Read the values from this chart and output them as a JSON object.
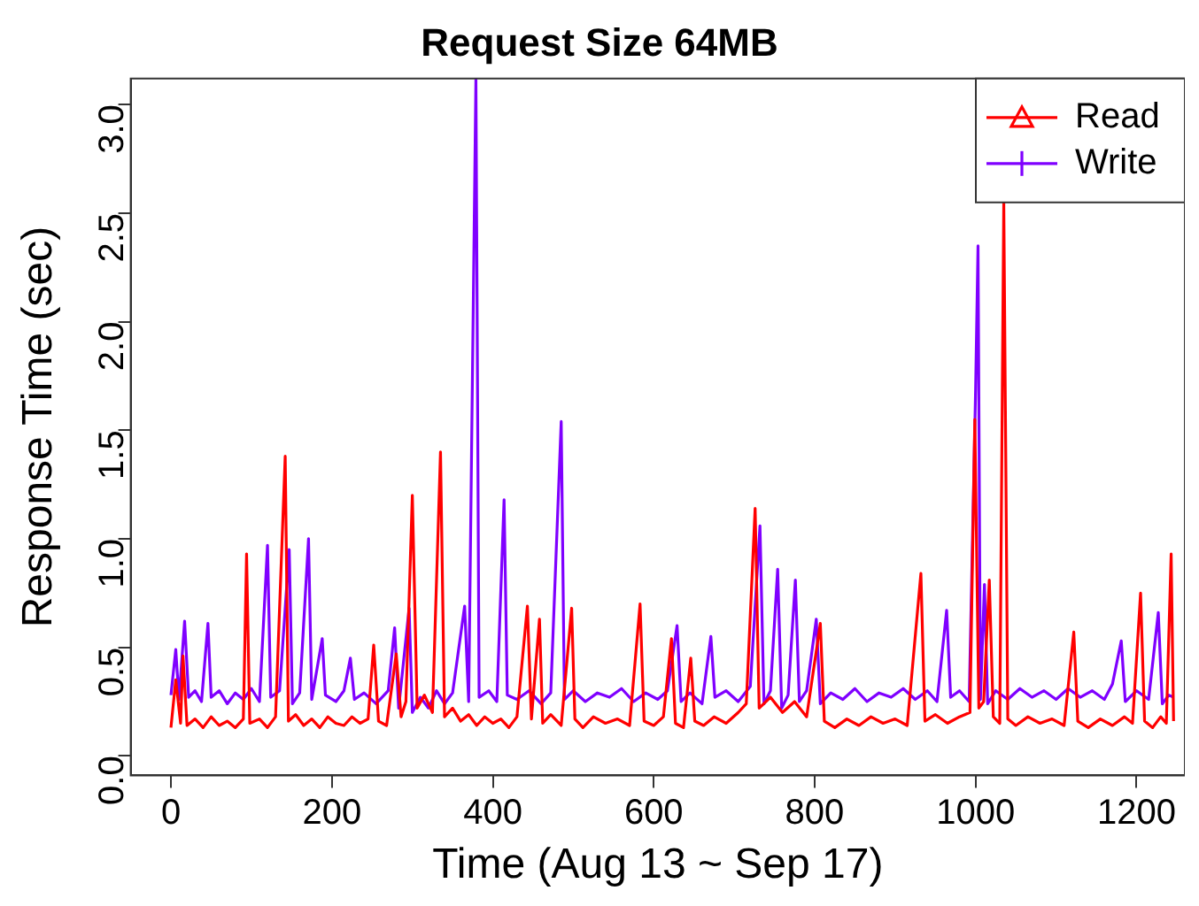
{
  "chart_data": {
    "type": "line",
    "title": "Request Size 64MB",
    "xlabel": "Time (Aug 13 ~ Sep 17)",
    "ylabel": "Response Time (sec)",
    "xlim": [
      -50,
      1260
    ],
    "xticks": [
      0,
      200,
      400,
      600,
      800,
      1000,
      1200
    ],
    "ylim": [
      -0.09,
      3.12
    ],
    "yticks": [
      {
        "value": 0,
        "label": "0.0"
      },
      0.5,
      {
        "value": 1,
        "label": "1.0"
      },
      1.5,
      {
        "value": 2,
        "label": "2.0"
      },
      2.5,
      {
        "value": 3,
        "label": "3.0"
      }
    ],
    "grid": false,
    "legend": "top right",
    "series": [
      {
        "name": "Read",
        "color": "#ff0000",
        "x": [
          0,
          6,
          12,
          15,
          20,
          30,
          40,
          50,
          60,
          70,
          80,
          90,
          94,
          98,
          110,
          120,
          130,
          142,
          146,
          155,
          165,
          175,
          185,
          195,
          205,
          215,
          225,
          235,
          245,
          252,
          258,
          268,
          280,
          286,
          292,
          300,
          306,
          315,
          325,
          335,
          340,
          350,
          360,
          370,
          380,
          390,
          400,
          410,
          420,
          430,
          443,
          448,
          458,
          462,
          472,
          485,
          498,
          502,
          512,
          525,
          540,
          555,
          570,
          583,
          588,
          600,
          612,
          622,
          627,
          637,
          646,
          651,
          662,
          675,
          690,
          705,
          715,
          726,
          731,
          745,
          760,
          775,
          790,
          807,
          812,
          825,
          840,
          855,
          870,
          885,
          900,
          915,
          932,
          937,
          950,
          965,
          980,
          993,
          999,
          1004,
          1010,
          1017,
          1022,
          1030,
          1035,
          1040,
          1050,
          1065,
          1080,
          1095,
          1110,
          1122,
          1127,
          1140,
          1155,
          1170,
          1185,
          1195,
          1205,
          1210,
          1220,
          1230,
          1237,
          1243,
          1246
        ],
        "values": [
          0.13,
          0.35,
          0.15,
          0.46,
          0.14,
          0.17,
          0.13,
          0.18,
          0.14,
          0.16,
          0.13,
          0.17,
          0.93,
          0.15,
          0.17,
          0.13,
          0.18,
          1.38,
          0.16,
          0.19,
          0.14,
          0.17,
          0.13,
          0.18,
          0.15,
          0.14,
          0.18,
          0.15,
          0.17,
          0.51,
          0.16,
          0.14,
          0.47,
          0.18,
          0.25,
          1.2,
          0.22,
          0.28,
          0.2,
          1.4,
          0.18,
          0.22,
          0.16,
          0.19,
          0.14,
          0.18,
          0.15,
          0.17,
          0.13,
          0.18,
          0.69,
          0.17,
          0.63,
          0.15,
          0.19,
          0.14,
          0.68,
          0.17,
          0.13,
          0.18,
          0.15,
          0.17,
          0.14,
          0.7,
          0.16,
          0.14,
          0.18,
          0.54,
          0.15,
          0.13,
          0.45,
          0.16,
          0.14,
          0.18,
          0.15,
          0.2,
          0.24,
          1.14,
          0.22,
          0.27,
          0.2,
          0.25,
          0.18,
          0.61,
          0.16,
          0.13,
          0.17,
          0.14,
          0.18,
          0.15,
          0.17,
          0.14,
          0.84,
          0.16,
          0.19,
          0.15,
          0.18,
          0.2,
          1.55,
          0.22,
          0.25,
          0.81,
          0.18,
          0.15,
          2.55,
          0.17,
          0.14,
          0.18,
          0.15,
          0.17,
          0.14,
          0.57,
          0.16,
          0.13,
          0.17,
          0.14,
          0.18,
          0.15,
          0.75,
          0.16,
          0.13,
          0.18,
          0.15,
          0.93,
          0.16
        ]
      },
      {
        "name": "Write",
        "color": "#7f00ff",
        "x": [
          0,
          6,
          10,
          17,
          22,
          30,
          38,
          46,
          50,
          60,
          70,
          80,
          90,
          100,
          110,
          120,
          124,
          135,
          147,
          151,
          160,
          171,
          175,
          188,
          192,
          205,
          215,
          223,
          228,
          240,
          255,
          270,
          278,
          283,
          296,
          300,
          310,
          320,
          330,
          340,
          350,
          365,
          370,
          379,
          383,
          395,
          405,
          414,
          418,
          430,
          445,
          460,
          472,
          485,
          489,
          500,
          515,
          530,
          545,
          560,
          575,
          590,
          605,
          617,
          629,
          634,
          645,
          660,
          671,
          676,
          690,
          705,
          720,
          732,
          737,
          745,
          754,
          759,
          767,
          776,
          781,
          790,
          802,
          807,
          820,
          835,
          850,
          865,
          880,
          895,
          910,
          925,
          940,
          952,
          964,
          969,
          980,
          992,
          1000,
          1003,
          1006,
          1011,
          1015,
          1025,
          1040,
          1055,
          1070,
          1085,
          1100,
          1115,
          1130,
          1145,
          1160,
          1170,
          1181,
          1186,
          1200,
          1215,
          1227,
          1232,
          1240,
          1246
        ],
        "values": [
          0.28,
          0.49,
          0.26,
          0.62,
          0.27,
          0.3,
          0.25,
          0.61,
          0.27,
          0.3,
          0.24,
          0.29,
          0.26,
          0.31,
          0.25,
          0.97,
          0.27,
          0.3,
          0.95,
          0.24,
          0.29,
          1.0,
          0.26,
          0.54,
          0.28,
          0.25,
          0.3,
          0.45,
          0.26,
          0.29,
          0.24,
          0.3,
          0.59,
          0.22,
          0.68,
          0.2,
          0.27,
          0.22,
          0.3,
          0.24,
          0.29,
          0.69,
          0.25,
          3.12,
          0.27,
          0.3,
          0.25,
          1.18,
          0.28,
          0.26,
          0.3,
          0.24,
          0.29,
          1.54,
          0.26,
          0.3,
          0.25,
          0.29,
          0.27,
          0.31,
          0.25,
          0.29,
          0.26,
          0.3,
          0.6,
          0.25,
          0.29,
          0.24,
          0.55,
          0.27,
          0.3,
          0.25,
          0.32,
          1.06,
          0.24,
          0.3,
          0.86,
          0.22,
          0.28,
          0.81,
          0.25,
          0.3,
          0.63,
          0.24,
          0.29,
          0.26,
          0.31,
          0.25,
          0.29,
          0.27,
          0.31,
          0.26,
          0.3,
          0.25,
          0.67,
          0.27,
          0.3,
          0.25,
          1.69,
          2.35,
          0.26,
          0.79,
          0.24,
          0.3,
          0.26,
          0.31,
          0.27,
          0.3,
          0.26,
          0.31,
          0.27,
          0.3,
          0.26,
          0.33,
          0.53,
          0.25,
          0.3,
          0.26,
          0.66,
          0.24,
          0.28,
          0.27
        ]
      }
    ]
  }
}
